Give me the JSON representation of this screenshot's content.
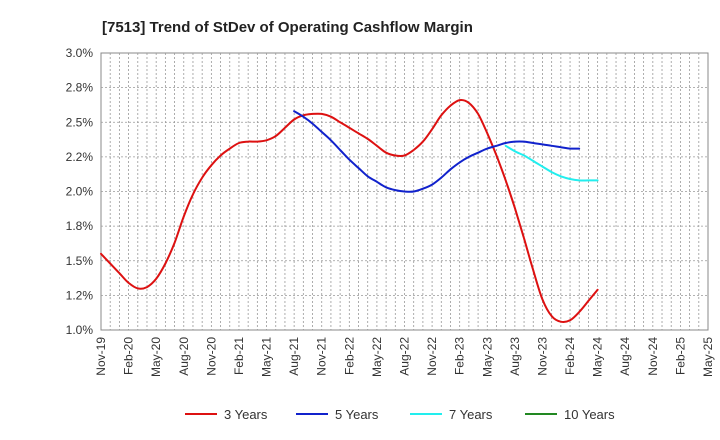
{
  "chart_data": {
    "type": "line",
    "title": "[7513]  Trend of StDev of Operating Cashflow Margin",
    "xlabel": "",
    "ylabel": "",
    "ylim": [
      1.0,
      3.0
    ],
    "y_ticks": [
      "1.0%",
      "1.2%",
      "1.5%",
      "1.8%",
      "2.0%",
      "2.2%",
      "2.5%",
      "2.8%",
      "3.0%"
    ],
    "y_tick_values": [
      1.0,
      1.25,
      1.5,
      1.75,
      2.0,
      2.25,
      2.5,
      2.75,
      3.0
    ],
    "x_ticks": [
      "Nov-19",
      "Feb-20",
      "May-20",
      "Aug-20",
      "Nov-20",
      "Feb-21",
      "May-21",
      "Aug-21",
      "Nov-21",
      "Feb-22",
      "May-22",
      "Aug-22",
      "Nov-22",
      "Feb-23",
      "May-23",
      "Aug-23",
      "Nov-23",
      "Feb-24",
      "May-24",
      "Aug-24",
      "Nov-24",
      "Feb-25",
      "May-25"
    ],
    "grid": true,
    "legend_position": "bottom",
    "series": [
      {
        "name": "3 Years",
        "color": "#dd1111",
        "start_month_index": 0,
        "values": [
          1.55,
          1.48,
          1.41,
          1.34,
          1.3,
          1.31,
          1.37,
          1.48,
          1.63,
          1.82,
          1.98,
          2.1,
          2.19,
          2.26,
          2.31,
          2.35,
          2.36,
          2.36,
          2.37,
          2.4,
          2.46,
          2.52,
          2.55,
          2.56,
          2.56,
          2.54,
          2.5,
          2.46,
          2.42,
          2.38,
          2.33,
          2.28,
          2.26,
          2.26,
          2.3,
          2.36,
          2.45,
          2.55,
          2.62,
          2.66,
          2.64,
          2.56,
          2.42,
          2.26,
          2.08,
          1.88,
          1.66,
          1.43,
          1.22,
          1.1,
          1.06,
          1.07,
          1.13,
          1.21,
          1.29
        ]
      },
      {
        "name": "5 Years",
        "color": "#1122cc",
        "start_month_index": 21,
        "values": [
          2.58,
          2.54,
          2.49,
          2.43,
          2.37,
          2.3,
          2.23,
          2.17,
          2.11,
          2.07,
          2.03,
          2.01,
          2.0,
          2.0,
          2.02,
          2.05,
          2.1,
          2.16,
          2.21,
          2.25,
          2.28,
          2.31,
          2.33,
          2.35,
          2.36,
          2.36,
          2.35,
          2.34,
          2.33,
          2.32,
          2.31,
          2.31
        ]
      },
      {
        "name": "7 Years",
        "color": "#22eeee",
        "start_month_index": 44,
        "values": [
          2.33,
          2.29,
          2.26,
          2.22,
          2.18,
          2.14,
          2.11,
          2.09,
          2.08,
          2.08,
          2.08
        ]
      },
      {
        "name": "10 Years",
        "color": "#228822",
        "start_month_index": 0,
        "values": []
      }
    ]
  }
}
